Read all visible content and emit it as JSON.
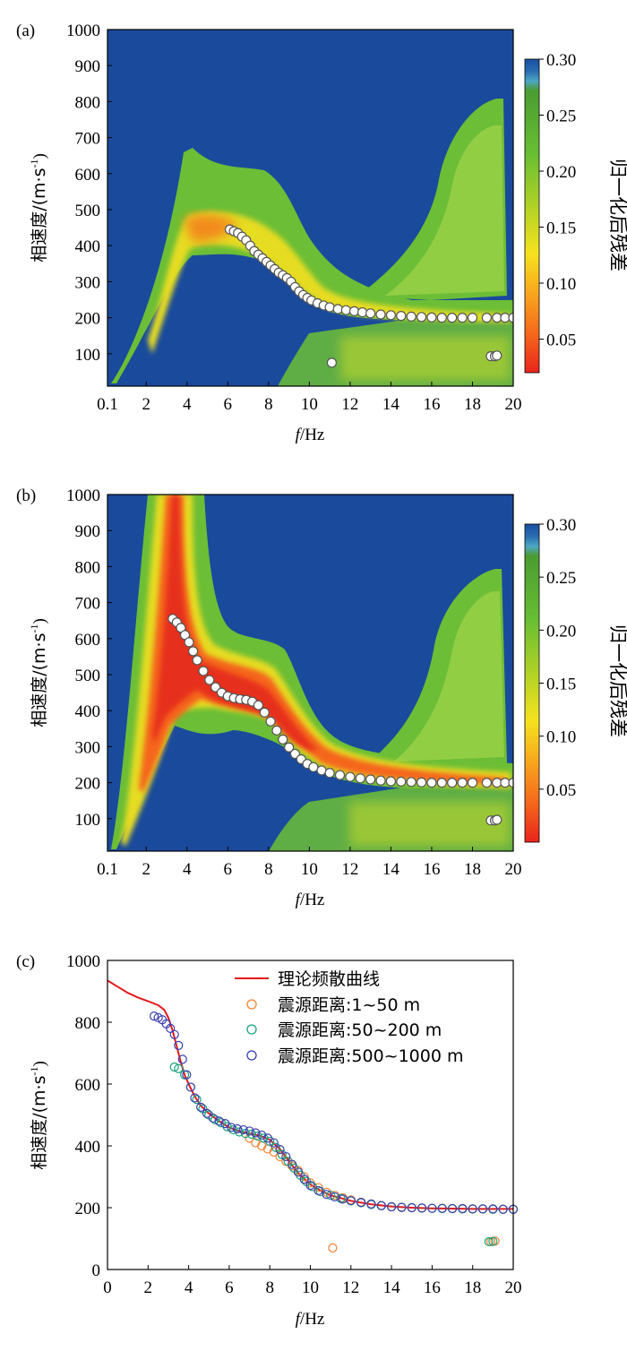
{
  "chart_data": [
    {
      "type": "heatmap",
      "panel_label": "(a)",
      "xlabel_italic": "f",
      "xlabel_rest": "/Hz",
      "ylabel_main": "相速度/(m·s",
      "ylabel_sup": "-1",
      "ylabel_close": ")",
      "x_ticks": [
        "0.1",
        "2",
        "4",
        "6",
        "8",
        "10",
        "12",
        "14",
        "16",
        "18",
        "20"
      ],
      "y_ticks": [
        "100",
        "200",
        "300",
        "400",
        "500",
        "600",
        "700",
        "800",
        "900",
        "1000"
      ],
      "xlim": [
        0.1,
        20
      ],
      "ylim": [
        10,
        1000
      ],
      "colorbar": {
        "label": "归一化后残差",
        "ticks": [
          "0.30",
          "0.25",
          "0.20",
          "0.15",
          "0.10",
          "0.05"
        ],
        "range": [
          0.02,
          0.3
        ],
        "colors": [
          "#e8241d",
          "#f5661b",
          "#f8a51e",
          "#f6e21f",
          "#b6d325",
          "#67be33",
          "#4b9c31",
          "#4da7c4",
          "#1a4fa0"
        ]
      },
      "background_color": "#1a4a9c",
      "picked_points": {
        "x": [
          6.1,
          6.3,
          6.5,
          6.7,
          6.9,
          7.1,
          7.3,
          7.5,
          7.7,
          7.9,
          8.1,
          8.3,
          8.5,
          8.7,
          8.9,
          9.1,
          9.3,
          9.5,
          9.7,
          9.9,
          10.1,
          10.4,
          10.7,
          11.0,
          11.4,
          11.8,
          12.2,
          12.6,
          13.0,
          13.5,
          14.0,
          14.5,
          15.0,
          15.5,
          16.0,
          16.5,
          17.0,
          17.5,
          18.0,
          18.7,
          19.2,
          19.6,
          20.0
        ],
        "y": [
          445,
          440,
          435,
          425,
          415,
          400,
          385,
          375,
          365,
          355,
          345,
          335,
          325,
          318,
          310,
          300,
          285,
          273,
          263,
          255,
          248,
          240,
          234,
          229,
          224,
          221,
          218,
          215,
          212,
          209,
          207,
          205,
          203,
          202,
          201,
          200,
          200,
          200,
          200,
          200,
          200,
          200,
          200
        ]
      },
      "outlier_points": {
        "x": [
          11.1,
          18.9,
          19.1,
          19.2
        ],
        "y": [
          75,
          93,
          93,
          95
        ]
      }
    },
    {
      "type": "heatmap",
      "panel_label": "(b)",
      "xlabel_italic": "f",
      "xlabel_rest": "/Hz",
      "ylabel_main": "相速度/(m·s",
      "ylabel_sup": "-1",
      "ylabel_close": ")",
      "x_ticks": [
        "0.1",
        "2",
        "4",
        "6",
        "8",
        "10",
        "12",
        "14",
        "16",
        "18",
        "20"
      ],
      "y_ticks": [
        "100",
        "200",
        "300",
        "400",
        "500",
        "600",
        "700",
        "800",
        "900",
        "1000"
      ],
      "xlim": [
        0.1,
        20
      ],
      "ylim": [
        10,
        1000
      ],
      "colorbar": {
        "label": "归一化后残差",
        "ticks": [
          "0.30",
          "0.25",
          "0.20",
          "0.15",
          "0.10",
          "0.05"
        ],
        "range": [
          0.0,
          0.3
        ],
        "colors": [
          "#e8241d",
          "#f5661b",
          "#f8a51e",
          "#f6e21f",
          "#b6d325",
          "#67be33",
          "#4b9c31",
          "#4da7c4",
          "#1a4fa0"
        ]
      },
      "background_color": "#1a4a9c",
      "picked_points": {
        "x": [
          3.3,
          3.5,
          3.7,
          3.9,
          4.1,
          4.3,
          4.5,
          4.8,
          5.1,
          5.4,
          5.7,
          6.0,
          6.3,
          6.6,
          6.9,
          7.2,
          7.5,
          7.8,
          8.1,
          8.4,
          8.7,
          9.0,
          9.3,
          9.6,
          9.9,
          10.2,
          10.6,
          11.0,
          11.5,
          12.0,
          12.5,
          13.0,
          13.5,
          14.0,
          14.5,
          15.0,
          15.5,
          16.0,
          16.5,
          17.0,
          17.5,
          18.0,
          18.7,
          19.2,
          19.6,
          20.0
        ],
        "y": [
          655,
          645,
          630,
          610,
          590,
          565,
          540,
          510,
          485,
          465,
          450,
          440,
          435,
          432,
          430,
          425,
          415,
          395,
          370,
          345,
          320,
          298,
          280,
          265,
          252,
          243,
          234,
          227,
          221,
          216,
          212,
          209,
          206,
          204,
          203,
          202,
          201,
          200,
          200,
          200,
          200,
          200,
          200,
          200,
          200,
          200
        ]
      },
      "outlier_points": {
        "x": [
          18.9,
          19.1,
          19.2
        ],
        "y": [
          95,
          95,
          97
        ]
      }
    },
    {
      "type": "scatter",
      "panel_label": "(c)",
      "xlabel_italic": "f",
      "xlabel_rest": "/Hz",
      "ylabel_main": "相速度/(m·s",
      "ylabel_sup": "-1",
      "ylabel_close": ")",
      "x_ticks": [
        "0",
        "2",
        "4",
        "6",
        "8",
        "10",
        "12",
        "14",
        "16",
        "18",
        "20"
      ],
      "y_ticks": [
        "0",
        "200",
        "400",
        "600",
        "800",
        "1000"
      ],
      "xlim": [
        0,
        20
      ],
      "ylim": [
        0,
        1000
      ],
      "series": [
        {
          "name": "理论频散曲线",
          "kind": "line",
          "color": "#e31a1c",
          "x": [
            0,
            0.5,
            1,
            1.5,
            2,
            2.5,
            2.8,
            3.0,
            3.2,
            3.4,
            3.6,
            3.8,
            4.0,
            4.3,
            4.6,
            5.0,
            5.5,
            6.0,
            6.5,
            7.0,
            7.5,
            8.0,
            8.5,
            9.0,
            9.5,
            10.0,
            10.5,
            11,
            12,
            13,
            14,
            15,
            16,
            17,
            18,
            19,
            20
          ],
          "y": [
            935,
            915,
            895,
            880,
            868,
            855,
            840,
            815,
            775,
            725,
            675,
            630,
            600,
            560,
            530,
            505,
            480,
            460,
            447,
            440,
            433,
            420,
            390,
            345,
            305,
            275,
            255,
            240,
            222,
            211,
            204,
            200,
            198,
            197,
            196,
            196,
            196
          ]
        },
        {
          "name": "震源距离:1~50 m",
          "kind": "marker",
          "color": "#f58231",
          "x": [
            7.0,
            7.3,
            7.6,
            7.9,
            8.2,
            8.5,
            8.8,
            9.1,
            9.4,
            9.7,
            10.0,
            10.4,
            10.8,
            11.2,
            11.6,
            12.0,
            12.5,
            13.0,
            13.5,
            14.0,
            14.5,
            15.0,
            15.5,
            16.0,
            16.5,
            17.0,
            17.5,
            18.0,
            18.5,
            19.0,
            19.5,
            20.0,
            11.1,
            18.9,
            19.1
          ],
          "y": [
            425,
            410,
            400,
            390,
            380,
            365,
            350,
            335,
            320,
            300,
            280,
            265,
            250,
            240,
            232,
            225,
            218,
            212,
            207,
            203,
            201,
            200,
            199,
            198,
            198,
            197,
            197,
            196,
            196,
            196,
            195,
            195,
            70,
            90,
            92
          ]
        },
        {
          "name": "震源距离:50~200 m",
          "kind": "marker",
          "color": "#1aa37a",
          "x": [
            3.3,
            3.5,
            3.8,
            4.1,
            4.4,
            4.7,
            5.0,
            5.3,
            5.6,
            5.9,
            6.2,
            6.5,
            6.8,
            7.1,
            7.4,
            7.7,
            8.0,
            8.3,
            8.6,
            8.9,
            9.2,
            9.5,
            9.8,
            10.1,
            10.5,
            11.0,
            11.5,
            12.0,
            12.5,
            13.0,
            13.5,
            14.0,
            14.5,
            15.0,
            15.5,
            16.0,
            16.5,
            17.0,
            17.5,
            18.0,
            18.5,
            19.0,
            19.5,
            20.0,
            18.8,
            19.0
          ],
          "y": [
            655,
            650,
            630,
            590,
            550,
            520,
            500,
            485,
            475,
            462,
            452,
            445,
            440,
            438,
            432,
            425,
            415,
            395,
            372,
            350,
            328,
            305,
            285,
            268,
            252,
            240,
            230,
            222,
            216,
            210,
            206,
            203,
            201,
            200,
            199,
            198,
            197,
            197,
            196,
            196,
            196,
            195,
            195,
            195,
            90,
            91
          ]
        },
        {
          "name": "震源距离:500~1000 m",
          "kind": "marker",
          "color": "#3b3fb0",
          "x": [
            2.3,
            2.5,
            2.7,
            2.9,
            3.1,
            3.3,
            3.5,
            3.7,
            3.9,
            4.1,
            4.3,
            4.6,
            4.9,
            5.2,
            5.5,
            5.8,
            6.1,
            6.4,
            6.7,
            7.0,
            7.3,
            7.6,
            7.9,
            8.2,
            8.5,
            8.8,
            9.1,
            9.4,
            9.7,
            10.0,
            10.4,
            10.8,
            11.2,
            11.6,
            12.0,
            12.5,
            13.0,
            13.5,
            14.0,
            14.5,
            15.0,
            15.5,
            16.0,
            16.5,
            17.0,
            17.5,
            18.0,
            18.5,
            19.0,
            19.5,
            20.0
          ],
          "y": [
            820,
            815,
            808,
            795,
            780,
            760,
            725,
            680,
            630,
            590,
            555,
            525,
            505,
            490,
            480,
            472,
            460,
            455,
            452,
            448,
            442,
            435,
            425,
            410,
            388,
            365,
            340,
            315,
            292,
            272,
            255,
            243,
            235,
            228,
            223,
            217,
            212,
            207,
            203,
            201,
            200,
            199,
            198,
            198,
            197,
            197,
            196,
            196,
            196,
            195,
            195
          ]
        }
      ]
    }
  ]
}
